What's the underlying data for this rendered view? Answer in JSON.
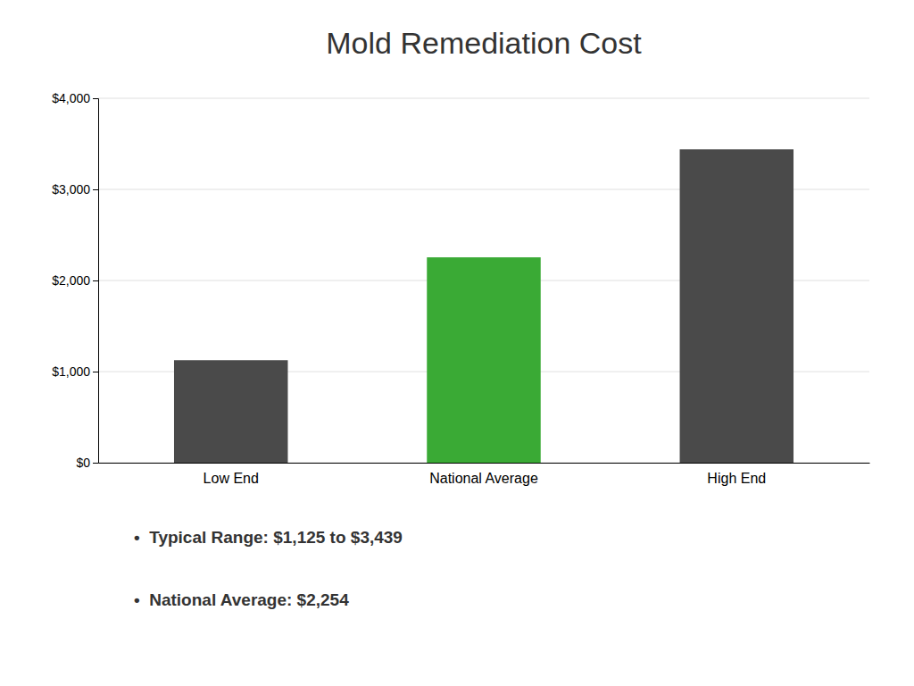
{
  "chart_data": {
    "type": "bar",
    "title": "Mold Remediation Cost",
    "categories": [
      "Low End",
      "National Average",
      "High End"
    ],
    "values": [
      1125,
      2254,
      3439
    ],
    "colors": [
      "#4a4a4a",
      "#3aaa35",
      "#4a4a4a"
    ],
    "ylim": [
      0,
      4000
    ],
    "yticks": [
      {
        "value": 0,
        "label": "$0"
      },
      {
        "value": 1000,
        "label": "$1,000"
      },
      {
        "value": 2000,
        "label": "$2,000"
      },
      {
        "value": 3000,
        "label": "$3,000"
      },
      {
        "value": 4000,
        "label": "$4,000"
      }
    ],
    "grid": true,
    "annotations": [
      "•  Typical Range: $1,125 to $3,439",
      "•  National Average: $2,254"
    ]
  }
}
